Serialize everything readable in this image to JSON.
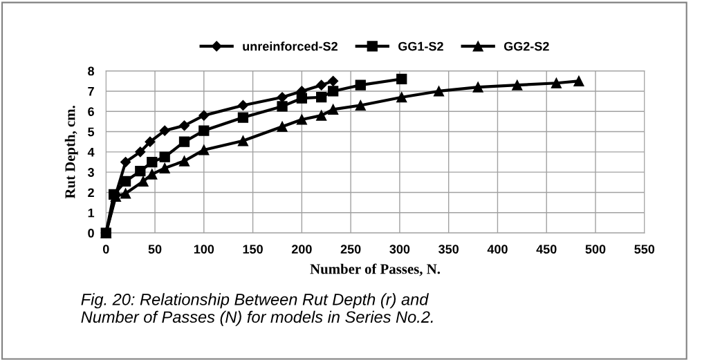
{
  "chart_data": {
    "type": "line",
    "xlabel": "Number of Passes, N.",
    "ylabel": "Rut Depth, cm.",
    "annotations": [
      "Fig. 20: Relationship Between Rut Depth (r) and\nNumber of Passes (N) for models in Series No.2."
    ],
    "xlim": [
      0,
      550
    ],
    "xticks": [
      0,
      50,
      100,
      150,
      200,
      250,
      300,
      350,
      400,
      450,
      500,
      550
    ],
    "ylim": [
      0,
      8
    ],
    "yticks": [
      0,
      1,
      2,
      3,
      4,
      5,
      6,
      7,
      8
    ],
    "grid": true,
    "legend": "top",
    "line_style": "solid",
    "series": [
      {
        "name": "unreinforced-S2",
        "color": "#000000",
        "marker": "diamond",
        "x": [
          0,
          10,
          20,
          35,
          45,
          60,
          80,
          100,
          140,
          180,
          200,
          220,
          232
        ],
        "values": [
          0,
          1.9,
          3.5,
          4.0,
          4.5,
          5.05,
          5.3,
          5.8,
          6.3,
          6.7,
          7.0,
          7.3,
          7.5
        ]
      },
      {
        "name": "GG1-S2",
        "color": "#000000",
        "marker": "square",
        "x": [
          0,
          8,
          20,
          35,
          47,
          60,
          80,
          100,
          140,
          180,
          200,
          220,
          232,
          260,
          302
        ],
        "values": [
          0,
          1.9,
          2.55,
          3.05,
          3.5,
          3.75,
          4.5,
          5.05,
          5.7,
          6.25,
          6.65,
          6.7,
          7.0,
          7.3,
          7.6
        ]
      },
      {
        "name": "GG2-S2",
        "color": "#000000",
        "marker": "triangle",
        "x": [
          0,
          10,
          20,
          38,
          47,
          60,
          80,
          100,
          140,
          180,
          200,
          220,
          232,
          260,
          302,
          340,
          380,
          420,
          460,
          483
        ],
        "values": [
          0,
          1.8,
          1.95,
          2.55,
          2.9,
          3.2,
          3.55,
          4.1,
          4.55,
          5.25,
          5.6,
          5.8,
          6.1,
          6.3,
          6.7,
          7.0,
          7.2,
          7.3,
          7.4,
          7.5
        ]
      }
    ]
  }
}
